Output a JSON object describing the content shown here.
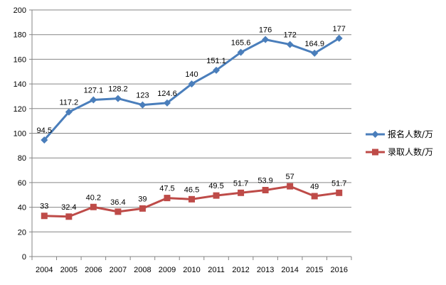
{
  "chart_data": {
    "type": "line",
    "x": [
      "2004",
      "2005",
      "2006",
      "2007",
      "2008",
      "2009",
      "2010",
      "2011",
      "2012",
      "2013",
      "2014",
      "2015",
      "2016"
    ],
    "series": [
      {
        "name": "报名人数/万",
        "values": [
          94.5,
          117.2,
          127.1,
          128.2,
          123,
          124.6,
          140,
          151.1,
          165.6,
          176,
          172,
          164.9,
          177
        ],
        "labels": [
          "94.5",
          "117.2",
          "127.1",
          "128.2",
          "123",
          "124.6",
          "140",
          "151.1",
          "165.6",
          "176",
          "172",
          "164.9",
          "177"
        ],
        "color": "#4a7ebb",
        "marker": "diamond"
      },
      {
        "name": "录取人数/万",
        "values": [
          33,
          32.4,
          40.2,
          36.4,
          39,
          47.5,
          46.5,
          49.5,
          51.7,
          53.9,
          57,
          49,
          51.7
        ],
        "labels": [
          "33",
          "32.4",
          "40.2",
          "36.4",
          "39",
          "47.5",
          "46.5",
          "49.5",
          "51.7",
          "53.9",
          "57",
          "49",
          "51.7"
        ],
        "color": "#be4b48",
        "marker": "square"
      }
    ],
    "yticks": [
      "0",
      "20",
      "40",
      "60",
      "80",
      "100",
      "120",
      "140",
      "160",
      "180",
      "200"
    ],
    "ylim": [
      0,
      200
    ],
    "grid": true,
    "legend": "right"
  }
}
